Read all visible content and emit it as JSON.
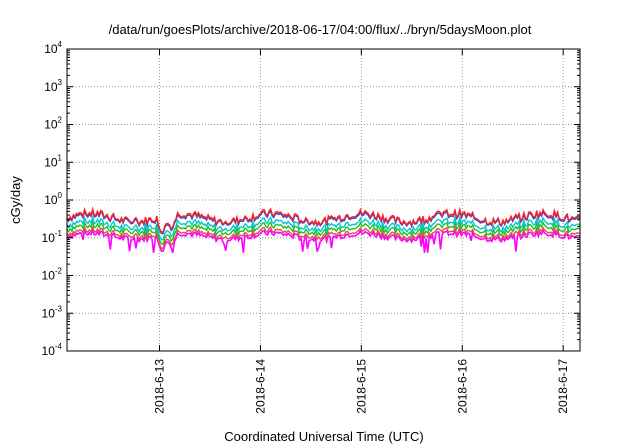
{
  "chart_data": {
    "type": "line",
    "title": "/data/run/goesPlots/archive/2018-06-17/04:00/flux/../bryn/5daysMoon.plot",
    "xlabel": "Coordinated Universal Time (UTC)",
    "ylabel": "cGy/day",
    "yscale": "log",
    "ylim": [
      0.0001,
      10000
    ],
    "y_ticks": [
      {
        "base": "10",
        "exp": "-4"
      },
      {
        "base": "10",
        "exp": "-3"
      },
      {
        "base": "10",
        "exp": "-2"
      },
      {
        "base": "10",
        "exp": "-1"
      },
      {
        "base": "10",
        "exp": "0"
      },
      {
        "base": "10",
        "exp": "1"
      },
      {
        "base": "10",
        "exp": "2"
      },
      {
        "base": "10",
        "exp": "3"
      },
      {
        "base": "10",
        "exp": "4"
      }
    ],
    "xlim": [
      "2018-06-12T02:00",
      "2018-06-17T04:00"
    ],
    "x_ticks": [
      "2018-6-13",
      "2018-6-14",
      "2018-6-15",
      "2018-6-16",
      "2018-6-17"
    ],
    "grid": true,
    "series_colors": [
      "#ff00ff",
      "#e05050",
      "#20c020",
      "#00c8c8",
      "#2050e0",
      "#ff2020"
    ],
    "series": [
      {
        "color": "#ff00ff",
        "typical_value": 0.11,
        "min_value": 0.04
      },
      {
        "color": "#e05050",
        "typical_value": 0.13
      },
      {
        "color": "#20c020",
        "typical_value": 0.17
      },
      {
        "color": "#00c8c8",
        "typical_value": 0.22
      },
      {
        "color": "#2050e0",
        "typical_value": 0.32
      },
      {
        "color": "#ff2020",
        "typical_value": 0.35
      }
    ],
    "dips": [
      {
        "time": "2018-06-13T00:40",
        "factor": 0.3
      },
      {
        "time": "2018-06-13T03:00",
        "factor": 0.4
      }
    ]
  }
}
